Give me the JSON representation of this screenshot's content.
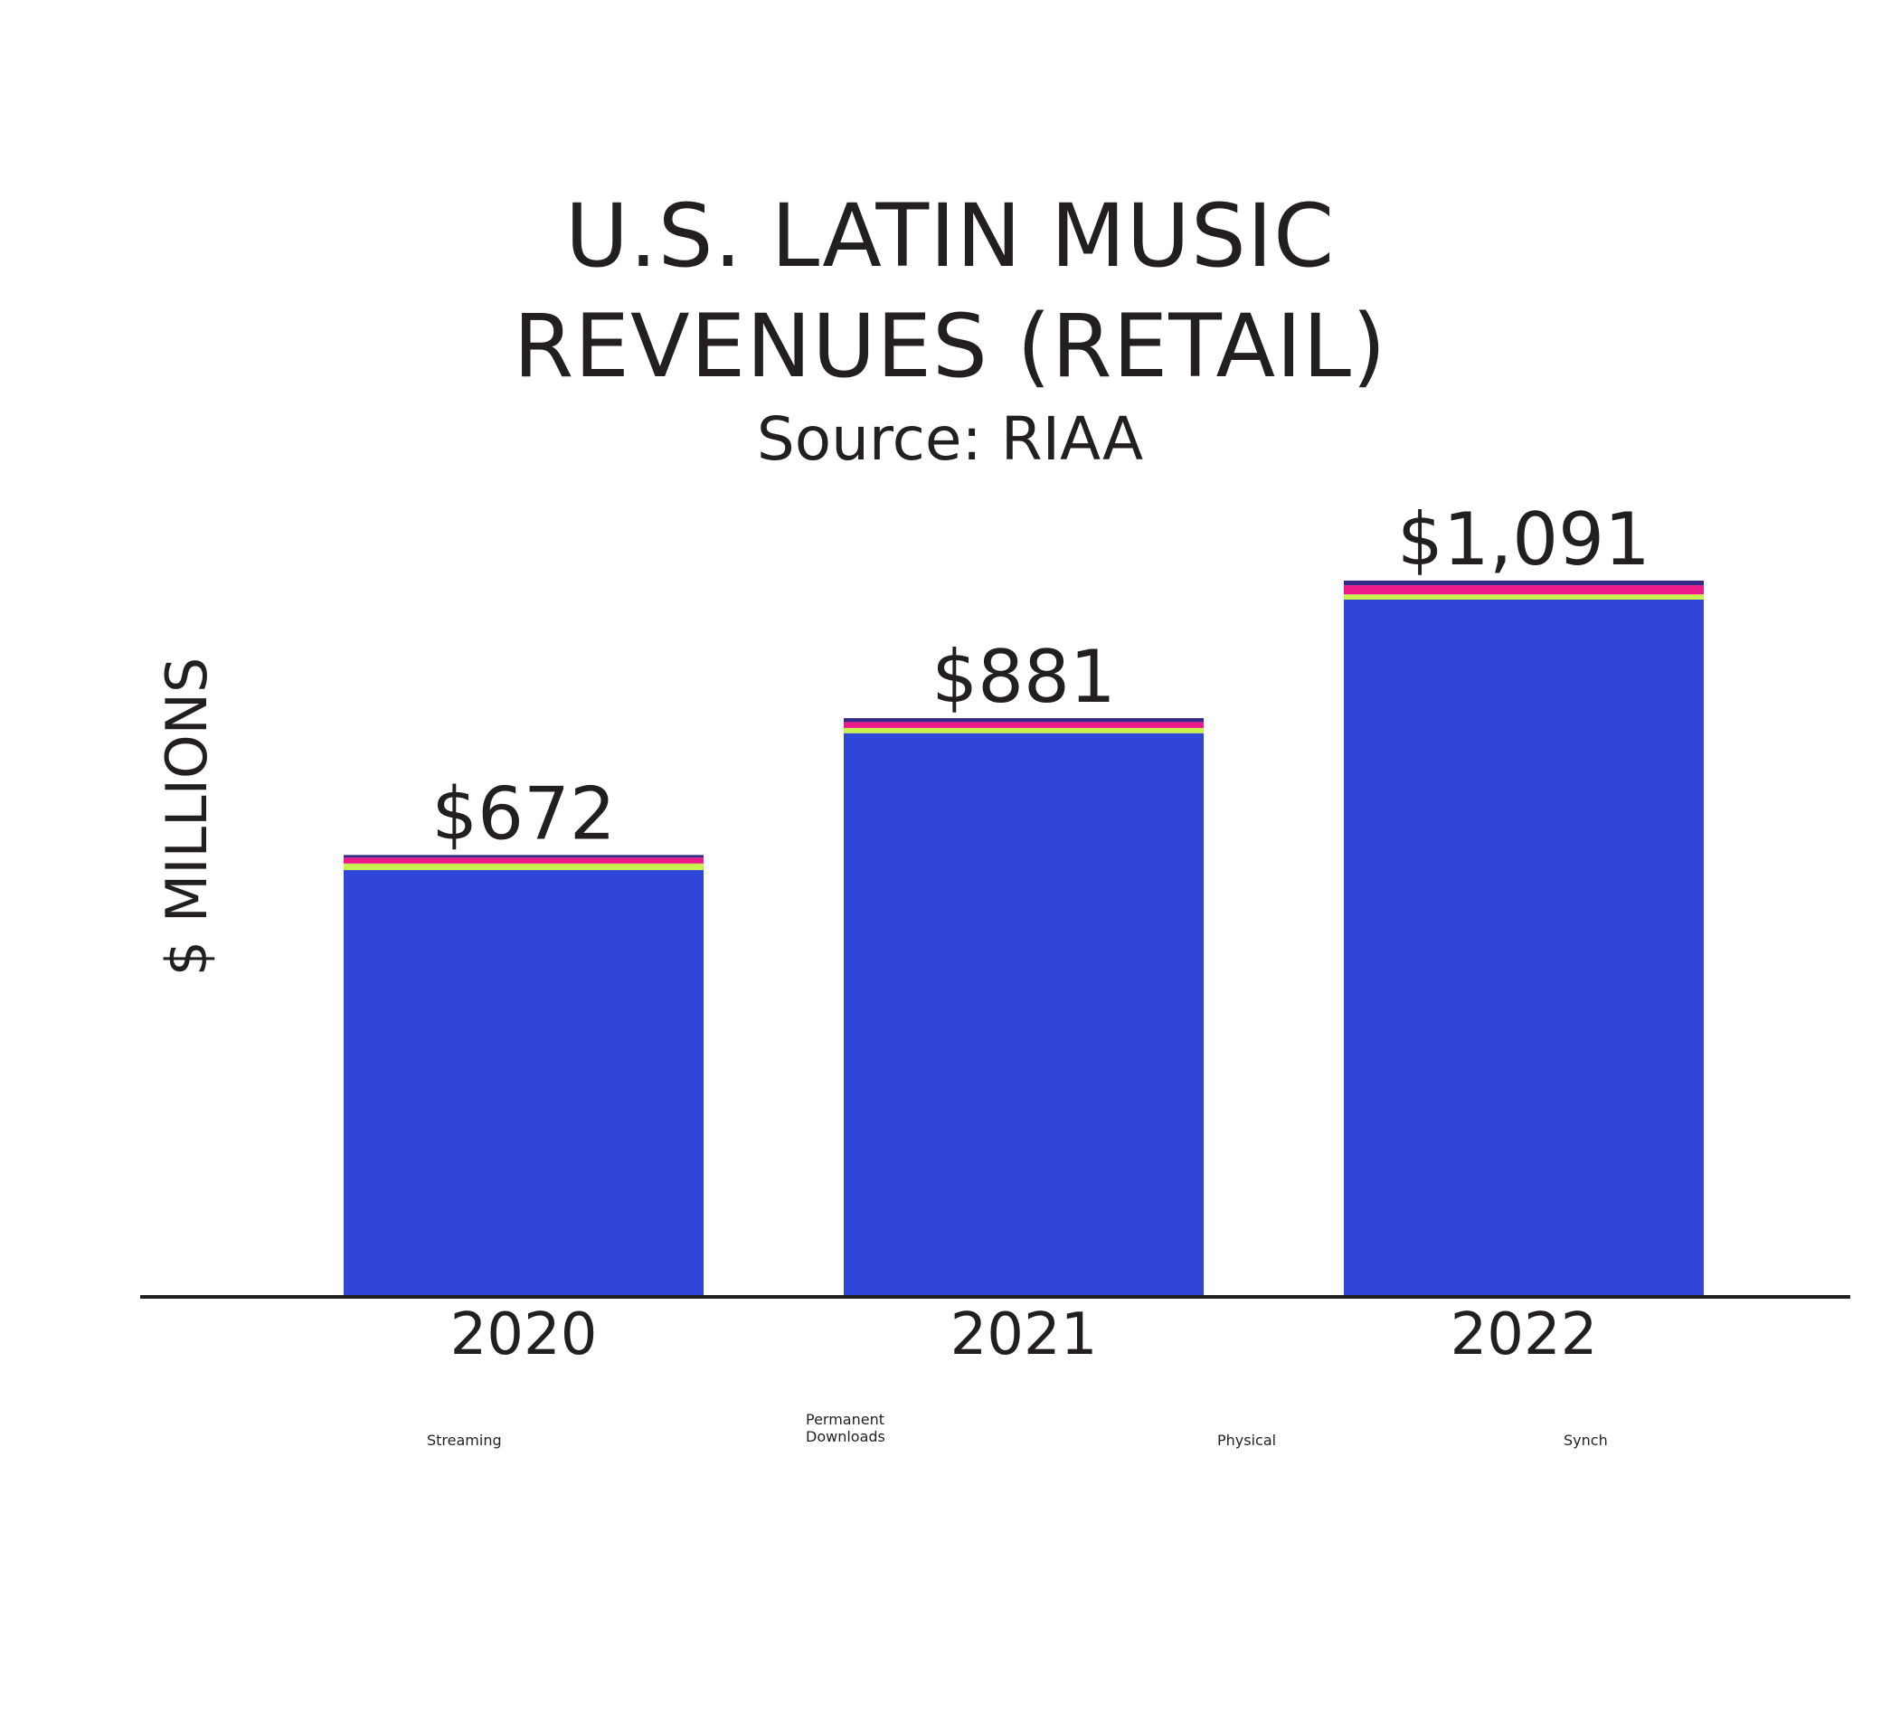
{
  "chart_data": {
    "type": "bar",
    "stacked": true,
    "title": [
      "U.S. LATIN MUSIC",
      "REVENUES (RETAIL)"
    ],
    "subtitle": "Source: RIAA",
    "ylabel": "$ MILLIONS",
    "xlabel": "",
    "categories": [
      "2020",
      "2021",
      "2022"
    ],
    "totals": [
      672,
      881,
      1091
    ],
    "total_labels": [
      "$672",
      "$881",
      "$1,091"
    ],
    "ylim": [
      0,
      1091
    ],
    "grid": false,
    "legend_position": "bottom",
    "series": [
      {
        "name": "Streaming",
        "color": "#3046d8",
        "values": [
          649,
          858,
          1062
        ]
      },
      {
        "name": "Permanent Downloads",
        "color": "#c8f24f",
        "values": [
          10,
          8,
          8
        ]
      },
      {
        "name": "Physical",
        "color": "#ee1a8c",
        "values": [
          9,
          9,
          14
        ]
      },
      {
        "name": "Synch",
        "color": "#342a86",
        "values": [
          4,
          6,
          7
        ]
      }
    ],
    "legend": [
      {
        "lines": [
          "Streaming"
        ],
        "color": "#3046d8"
      },
      {
        "lines": [
          "Permanent",
          "Downloads"
        ],
        "color": "#c8f24f"
      },
      {
        "lines": [
          "Physical"
        ],
        "color": "#ee1a8c"
      },
      {
        "lines": [
          "Synch"
        ],
        "color": "#342a86"
      }
    ]
  }
}
